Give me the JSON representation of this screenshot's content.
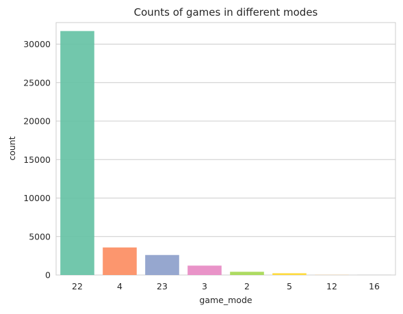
{
  "chart_data": {
    "type": "bar",
    "title": "Counts of games in different modes",
    "xlabel": "game_mode",
    "ylabel": "count",
    "categories": [
      "22",
      "4",
      "23",
      "3",
      "2",
      "5",
      "12",
      "16"
    ],
    "values": [
      31700,
      3580,
      2600,
      1220,
      420,
      230,
      40,
      20
    ],
    "colors": [
      "#66c2a5",
      "#fc8d62",
      "#8da0cb",
      "#e78ac3",
      "#a6d854",
      "#ffd92f",
      "#e5c494",
      "#b3b3b3"
    ],
    "ylim": [
      0,
      32800
    ],
    "yticks": [
      0,
      5000,
      10000,
      15000,
      20000,
      25000,
      30000
    ],
    "ytick_labels": [
      "0",
      "5000",
      "10000",
      "15000",
      "20000",
      "25000",
      "30000"
    ],
    "grid": "horizontal",
    "legend": "none"
  }
}
